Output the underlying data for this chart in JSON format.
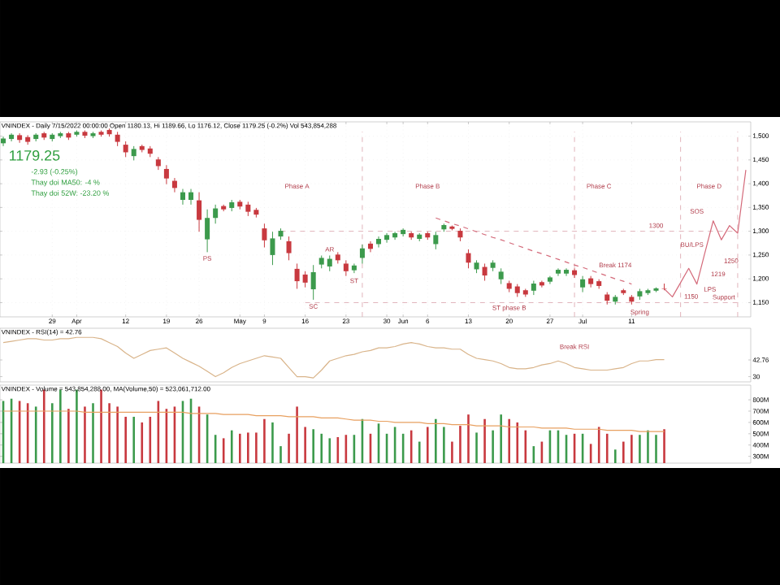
{
  "chart_data": [
    {
      "type": "candlestick",
      "title": "VNINDEX - Daily 7/15/2022 00:00:00 Open 1180.13, Hi 1189.66, Lo 1176.12, Close 1179.25 (-0.2%) Vol 543,854,288",
      "categories": [
        null,
        null,
        null,
        null,
        null,
        null,
        "29",
        null,
        null,
        "Apr",
        null,
        null,
        null,
        null,
        null,
        "12",
        null,
        null,
        null,
        null,
        "19",
        null,
        null,
        null,
        "26",
        null,
        null,
        null,
        null,
        "May",
        null,
        null,
        "9",
        null,
        null,
        null,
        null,
        "16",
        null,
        null,
        null,
        null,
        "23",
        null,
        null,
        null,
        null,
        "30",
        null,
        "Jun",
        null,
        null,
        "6",
        null,
        null,
        null,
        null,
        "13",
        null,
        null,
        null,
        null,
        "20",
        null,
        null,
        null,
        null,
        "27",
        null,
        null,
        null,
        "Jul",
        null,
        null,
        null,
        null,
        null,
        "11",
        null,
        null,
        null,
        null,
        null,
        null,
        null,
        null,
        null,
        null,
        null,
        null,
        null,
        null
      ],
      "ohlc": [
        [
          1485,
          1499,
          1479,
          1495
        ],
        [
          1494,
          1506,
          1489,
          1503
        ],
        [
          1502,
          1506,
          1486,
          1492
        ],
        [
          1498,
          1502,
          1482,
          1488
        ],
        [
          1494,
          1506,
          1489,
          1503
        ],
        [
          1506,
          1509,
          1492,
          1497
        ],
        [
          1494,
          1506,
          1489,
          1503
        ],
        [
          1500,
          1509,
          1496,
          1506
        ],
        [
          1506,
          1509,
          1492,
          1497
        ],
        [
          1503,
          1512,
          1499,
          1509
        ],
        [
          1509,
          1512,
          1496,
          1501
        ],
        [
          1500,
          1509,
          1496,
          1506
        ],
        [
          1509,
          1512,
          1499,
          1503
        ],
        [
          1513,
          1516,
          1499,
          1504
        ],
        [
          1503,
          1509,
          1479,
          1488
        ],
        [
          1482,
          1489,
          1456,
          1466
        ],
        [
          1458,
          1479,
          1449,
          1473
        ],
        [
          1479,
          1482,
          1466,
          1471
        ],
        [
          1474,
          1479,
          1456,
          1463
        ],
        [
          1451,
          1456,
          1429,
          1437
        ],
        [
          1431,
          1439,
          1399,
          1411
        ],
        [
          1406,
          1412,
          1382,
          1391
        ],
        [
          1366,
          1389,
          1356,
          1382
        ],
        [
          1366,
          1389,
          1356,
          1382
        ],
        [
          1365,
          1382,
          1299,
          1324
        ],
        [
          1283,
          1346,
          1256,
          1328
        ],
        [
          1328,
          1356,
          1316,
          1348
        ],
        [
          1353,
          1356,
          1342,
          1346
        ],
        [
          1349,
          1366,
          1342,
          1361
        ],
        [
          1362,
          1366,
          1346,
          1352
        ],
        [
          1356,
          1362,
          1332,
          1341
        ],
        [
          1345,
          1349,
          1329,
          1335
        ],
        [
          1306,
          1316,
          1266,
          1281
        ],
        [
          1250,
          1299,
          1229,
          1285
        ],
        [
          1289,
          1306,
          1282,
          1301
        ],
        [
          1279,
          1289,
          1239,
          1254
        ],
        [
          1221,
          1232,
          1179,
          1195
        ],
        [
          1209,
          1216,
          1182,
          1192
        ],
        [
          1178,
          1229,
          1156,
          1214
        ],
        [
          1230,
          1249,
          1222,
          1244
        ],
        [
          1226,
          1249,
          1216,
          1242
        ],
        [
          1251,
          1256,
          1232,
          1239
        ],
        [
          1232,
          1239,
          1206,
          1216
        ],
        [
          1218,
          1232,
          1212,
          1228
        ],
        [
          1244,
          1272,
          1232,
          1264
        ],
        [
          1274,
          1279,
          1256,
          1263
        ],
        [
          1273,
          1289,
          1266,
          1284
        ],
        [
          1282,
          1296,
          1276,
          1292
        ],
        [
          1287,
          1299,
          1282,
          1296
        ],
        [
          1294,
          1306,
          1289,
          1303
        ],
        [
          1296,
          1299,
          1282,
          1287
        ],
        [
          1284,
          1296,
          1279,
          1293
        ],
        [
          1296,
          1299,
          1282,
          1287
        ],
        [
          1273,
          1299,
          1262,
          1292
        ],
        [
          1304,
          1316,
          1299,
          1313
        ],
        [
          1310,
          1312,
          1302,
          1305
        ],
        [
          1301,
          1306,
          1279,
          1287
        ],
        [
          1254,
          1262,
          1222,
          1234
        ],
        [
          1220,
          1239,
          1212,
          1234
        ],
        [
          1225,
          1232,
          1196,
          1207
        ],
        [
          1223,
          1239,
          1216,
          1234
        ],
        [
          1199,
          1222,
          1189,
          1215
        ],
        [
          1191,
          1196,
          1172,
          1179
        ],
        [
          1184,
          1189,
          1162,
          1170
        ],
        [
          1176,
          1179,
          1162,
          1167
        ],
        [
          1175,
          1196,
          1166,
          1190
        ],
        [
          1193,
          1196,
          1182,
          1186
        ],
        [
          1194,
          1206,
          1189,
          1203
        ],
        [
          1211,
          1222,
          1206,
          1219
        ],
        [
          1211,
          1222,
          1206,
          1219
        ],
        [
          1218,
          1222,
          1202,
          1208
        ],
        [
          1182,
          1206,
          1172,
          1199
        ],
        [
          1201,
          1206,
          1182,
          1189
        ],
        [
          1195,
          1199,
          1179,
          1185
        ],
        [
          1167,
          1172,
          1146,
          1154
        ],
        [
          1152,
          1166,
          1146,
          1162
        ],
        [
          1176,
          1179,
          1166,
          1170
        ],
        [
          1162,
          1166,
          1146,
          1152
        ],
        [
          1163,
          1179,
          1156,
          1174
        ],
        [
          1170,
          1179,
          1166,
          1176
        ],
        [
          1175,
          1182,
          1172,
          1180
        ],
        [
          1180,
          1190,
          1176,
          1179
        ],
        null,
        null,
        null,
        null,
        null,
        null,
        null,
        null,
        null,
        null
      ],
      "colors": [
        "#3c9a4c",
        "#3c9a4c",
        "#c8393f",
        "#c8393f",
        "#3c9a4c",
        "#c8393f",
        "#3c9a4c",
        "#3c9a4c",
        "#c8393f",
        "#3c9a4c",
        "#c8393f",
        "#3c9a4c",
        "#c8393f",
        "#c8393f",
        "#c8393f",
        "#c8393f",
        "#3c9a4c",
        "#c8393f",
        "#c8393f",
        "#c8393f",
        "#c8393f",
        "#c8393f",
        "#3c9a4c",
        "#3c9a4c",
        "#c8393f",
        "#3c9a4c",
        "#3c9a4c",
        "#c8393f",
        "#3c9a4c",
        "#c8393f",
        "#c8393f",
        "#c8393f",
        "#c8393f",
        "#3c9a4c",
        "#3c9a4c",
        "#c8393f",
        "#c8393f",
        "#c8393f",
        "#3c9a4c",
        "#3c9a4c",
        "#3c9a4c",
        "#c8393f",
        "#c8393f",
        "#3c9a4c",
        "#3c9a4c",
        "#c8393f",
        "#3c9a4c",
        "#3c9a4c",
        "#3c9a4c",
        "#3c9a4c",
        "#c8393f",
        "#3c9a4c",
        "#c8393f",
        "#3c9a4c",
        "#3c9a4c",
        "#c8393f",
        "#c8393f",
        "#c8393f",
        "#3c9a4c",
        "#c8393f",
        "#3c9a4c",
        "#3c9a4c",
        "#c8393f",
        "#c8393f",
        "#c8393f",
        "#3c9a4c",
        "#c8393f",
        "#3c9a4c",
        "#3c9a4c",
        "#3c9a4c",
        "#c8393f",
        "#3c9a4c",
        "#c8393f",
        "#c8393f",
        "#c8393f",
        "#3c9a4c",
        "#c8393f",
        "#c8393f",
        "#3c9a4c",
        "#3c9a4c",
        "#3c9a4c",
        "#c8393f",
        null,
        null,
        null,
        null,
        null,
        null,
        null,
        null,
        null,
        null
      ],
      "series": [
        {
          "type": "line",
          "color": "#d46a7a",
          "line_style": "dashed",
          "values": [
            null,
            null,
            null,
            null,
            null,
            null,
            null,
            null,
            null,
            null,
            null,
            null,
            null,
            null,
            null,
            null,
            null,
            null,
            null,
            null,
            null,
            null,
            null,
            null,
            null,
            null,
            null,
            null,
            null,
            null,
            null,
            null,
            null,
            null,
            null,
            null,
            null,
            null,
            null,
            null,
            null,
            null,
            null,
            null,
            null,
            null,
            null,
            null,
            null,
            null,
            null,
            null,
            null,
            1328,
            1322,
            1316,
            1311,
            1305,
            1299,
            1293,
            1287,
            1282,
            1276,
            1270,
            1264,
            1258,
            1253,
            1247,
            1241,
            1235,
            1229,
            1224,
            1218,
            1212,
            1206,
            1200,
            1195,
            1189,
            null,
            null,
            null,
            null,
            null,
            null,
            null,
            null,
            null,
            null,
            null,
            null,
            null,
            null
          ]
        },
        {
          "type": "line",
          "color": "#d46a7a",
          "line_style": "solid",
          "values": [
            null,
            null,
            null,
            null,
            null,
            null,
            null,
            null,
            null,
            null,
            null,
            null,
            null,
            null,
            null,
            null,
            null,
            null,
            null,
            null,
            null,
            null,
            null,
            null,
            null,
            null,
            null,
            null,
            null,
            null,
            null,
            null,
            null,
            null,
            null,
            null,
            null,
            null,
            null,
            null,
            null,
            null,
            null,
            null,
            null,
            null,
            null,
            null,
            null,
            null,
            null,
            null,
            null,
            null,
            null,
            null,
            null,
            null,
            null,
            null,
            null,
            null,
            null,
            null,
            null,
            null,
            null,
            null,
            null,
            null,
            null,
            null,
            null,
            null,
            null,
            null,
            null,
            null,
            null,
            null,
            null,
            1179,
            1162,
            1192,
            1222,
            1189,
            1256,
            1322,
            1282,
            1312,
            1296,
            1429
          ]
        }
      ],
      "ylim": [
        1120,
        1530
      ],
      "grid": true,
      "yticks": [
        {
          "value": 1150,
          "label": "1,150"
        },
        {
          "value": 1200,
          "label": "1,200"
        },
        {
          "value": 1250,
          "label": "1,250"
        },
        {
          "value": 1300,
          "label": "1,300"
        },
        {
          "value": 1350,
          "label": "1,350"
        },
        {
          "value": 1400,
          "label": "1,400"
        },
        {
          "value": 1450,
          "label": "1,450"
        },
        {
          "value": 1500,
          "label": "1,500"
        }
      ],
      "ref_lines": [
        {
          "axis": "y",
          "value": 1300,
          "label": "1300",
          "color": "#d9a0a8",
          "line_style": "dashed"
        },
        {
          "axis": "y",
          "value": 1150,
          "label": "Support",
          "color": "#d9a0a8",
          "line_style": "dashed"
        }
      ],
      "annotations": [
        "1179.25",
        "-2.93 (-0.25%)",
        "Thay doi MA50: -4 %",
        "Thay doi 52W: -23.20 %",
        "Phase A",
        "Phase B",
        "Phase C",
        "Phase D",
        "PS",
        "SC",
        "AR",
        "ST",
        "ST phase B",
        "Break 1174",
        "Spring",
        "LPS",
        "1150",
        "1219",
        "1250",
        "SOS",
        "BU/LPS"
      ]
    },
    {
      "type": "line",
      "title": "VNINDEX - RSI(14) = 42.76",
      "tick_labels": "y",
      "categories": [
        null,
        null,
        null,
        null,
        null,
        null,
        null,
        null,
        null,
        null,
        null,
        null,
        null,
        null,
        null,
        null,
        null,
        null,
        null,
        null,
        null,
        null,
        null,
        null,
        null,
        null,
        null,
        null,
        null,
        null,
        null,
        null,
        null,
        null,
        null,
        null,
        null,
        null,
        null,
        null,
        null,
        null,
        null,
        null,
        null,
        null,
        null,
        null,
        null,
        null,
        null,
        null,
        null,
        null,
        null,
        null,
        null,
        null,
        null,
        null,
        null,
        null,
        null,
        null,
        null,
        null,
        null,
        null,
        null,
        null,
        null,
        null,
        null,
        null,
        null,
        null,
        null,
        null,
        null,
        null,
        null,
        null,
        null,
        null,
        null,
        null,
        null,
        null,
        null,
        null,
        null,
        null
      ],
      "series": [
        {
          "color": "#d9b48a",
          "values": [
            56,
            57,
            58,
            59,
            59,
            58,
            58,
            59,
            59,
            60,
            60,
            60,
            59,
            56,
            53,
            48,
            44,
            47,
            50,
            51,
            52,
            48,
            44,
            41,
            38,
            34,
            30,
            33,
            37,
            40,
            42,
            44,
            46,
            45,
            44,
            37,
            30,
            30,
            29,
            35,
            42,
            44,
            46,
            47,
            49,
            50,
            52,
            52,
            53,
            55,
            56,
            55,
            53,
            52,
            52,
            51,
            51,
            47,
            44,
            43,
            42,
            40,
            37,
            36,
            36,
            37,
            39,
            40,
            42,
            40,
            37,
            36,
            35,
            35,
            35,
            36,
            37,
            40,
            42,
            42,
            43,
            43,
            null,
            null,
            null,
            null,
            null,
            null,
            null,
            null,
            null,
            null
          ]
        }
      ],
      "ylim": [
        26,
        67
      ],
      "yticks": [
        30,
        42.76
      ],
      "annotations": [
        "Break RSI"
      ]
    },
    {
      "type": "bar",
      "title": "VNINDEX - Volume = 543,854,288.00, MA(Volume,50) = 523,061,712.00",
      "tick_labels": "y",
      "categories": [
        null,
        null,
        null,
        null,
        null,
        null,
        null,
        null,
        null,
        null,
        null,
        null,
        null,
        null,
        null,
        null,
        null,
        null,
        null,
        null,
        null,
        null,
        null,
        null,
        null,
        null,
        null,
        null,
        null,
        null,
        null,
        null,
        null,
        null,
        null,
        null,
        null,
        null,
        null,
        null,
        null,
        null,
        null,
        null,
        null,
        null,
        null,
        null,
        null,
        null,
        null,
        null,
        null,
        null,
        null,
        null,
        null,
        null,
        null,
        null,
        null,
        null,
        null,
        null,
        null,
        null,
        null,
        null,
        null,
        null,
        null,
        null,
        null,
        null,
        null,
        null,
        null,
        null,
        null,
        null,
        null,
        null,
        null,
        null,
        null,
        null,
        null,
        null,
        null,
        null,
        null,
        null
      ],
      "series": [
        {
          "type": "bar",
          "values": [
            790,
            810,
            790,
            770,
            740,
            890,
            770,
            890,
            720,
            890,
            740,
            770,
            890,
            770,
            740,
            650,
            650,
            600,
            650,
            790,
            720,
            740,
            790,
            810,
            740,
            670,
            490,
            460,
            530,
            500,
            510,
            510,
            630,
            600,
            390,
            500,
            740,
            560,
            540,
            500,
            460,
            470,
            490,
            490,
            630,
            500,
            590,
            500,
            560,
            500,
            530,
            430,
            560,
            630,
            560,
            430,
            570,
            670,
            510,
            630,
            530,
            670,
            630,
            600,
            530,
            390,
            430,
            530,
            530,
            490,
            500,
            500,
            410,
            560,
            500,
            360,
            430,
            490,
            490,
            530,
            490,
            540,
            null,
            null,
            null,
            null,
            null,
            null,
            null,
            null,
            null,
            null
          ],
          "colors": [
            "#3c9a4c",
            "#3c9a4c",
            "#c8393f",
            "#c8393f",
            "#3c9a4c",
            "#c8393f",
            "#3c9a4c",
            "#3c9a4c",
            "#c8393f",
            "#3c9a4c",
            "#c8393f",
            "#3c9a4c",
            "#c8393f",
            "#c8393f",
            "#c8393f",
            "#c8393f",
            "#3c9a4c",
            "#c8393f",
            "#c8393f",
            "#c8393f",
            "#c8393f",
            "#c8393f",
            "#3c9a4c",
            "#3c9a4c",
            "#c8393f",
            "#3c9a4c",
            "#3c9a4c",
            "#c8393f",
            "#3c9a4c",
            "#c8393f",
            "#c8393f",
            "#c8393f",
            "#c8393f",
            "#3c9a4c",
            "#3c9a4c",
            "#c8393f",
            "#c8393f",
            "#c8393f",
            "#3c9a4c",
            "#3c9a4c",
            "#3c9a4c",
            "#c8393f",
            "#c8393f",
            "#3c9a4c",
            "#3c9a4c",
            "#c8393f",
            "#3c9a4c",
            "#3c9a4c",
            "#3c9a4c",
            "#3c9a4c",
            "#c8393f",
            "#3c9a4c",
            "#c8393f",
            "#3c9a4c",
            "#3c9a4c",
            "#c8393f",
            "#c8393f",
            "#c8393f",
            "#3c9a4c",
            "#c8393f",
            "#3c9a4c",
            "#3c9a4c",
            "#c8393f",
            "#c8393f",
            "#c8393f",
            "#3c9a4c",
            "#c8393f",
            "#3c9a4c",
            "#3c9a4c",
            "#3c9a4c",
            "#c8393f",
            "#3c9a4c",
            "#c8393f",
            "#c8393f",
            "#c8393f",
            "#3c9a4c",
            "#c8393f",
            "#c8393f",
            "#3c9a4c",
            "#3c9a4c",
            "#3c9a4c",
            "#c8393f",
            null,
            null,
            null,
            null,
            null,
            null,
            null,
            null,
            null,
            null
          ]
        },
        {
          "type": "line",
          "color": "#e8a060",
          "values": [
            700,
            700,
            700,
            700,
            700,
            700,
            700,
            700,
            700,
            700,
            690,
            690,
            690,
            690,
            690,
            690,
            690,
            690,
            690,
            690,
            690,
            690,
            690,
            680,
            680,
            680,
            680,
            670,
            670,
            670,
            670,
            660,
            660,
            660,
            660,
            650,
            650,
            650,
            650,
            640,
            640,
            640,
            630,
            620,
            620,
            620,
            610,
            610,
            600,
            600,
            600,
            600,
            590,
            590,
            590,
            580,
            580,
            580,
            570,
            570,
            570,
            570,
            560,
            560,
            560,
            560,
            550,
            550,
            550,
            550,
            540,
            540,
            540,
            540,
            530,
            530,
            530,
            530,
            520,
            520,
            520,
            520,
            null,
            null,
            null,
            null,
            null,
            null,
            null,
            null,
            null,
            null
          ]
        }
      ],
      "ylim": [
        240,
        930
      ],
      "yticks": [
        {
          "value": 300,
          "label": "300M"
        },
        {
          "value": 400,
          "label": "400M"
        },
        {
          "value": 500,
          "label": "500M"
        },
        {
          "value": 600,
          "label": "600M"
        },
        {
          "value": 700,
          "label": "700M"
        },
        {
          "value": 800,
          "label": "800M"
        }
      ]
    }
  ]
}
